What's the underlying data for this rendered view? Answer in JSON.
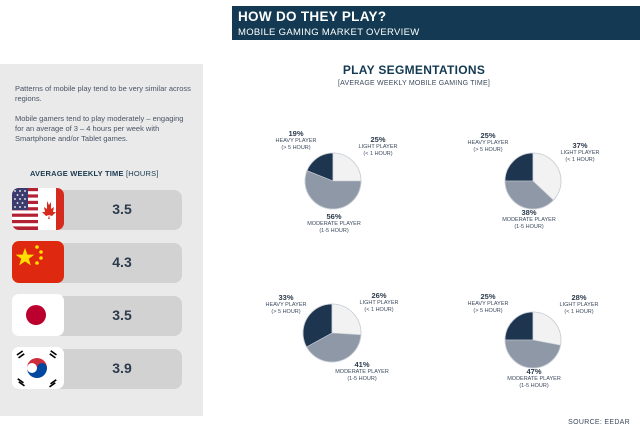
{
  "header": {
    "title": "HOW DO THEY PLAY?",
    "subtitle": "MOBILE GAMING MARKET OVERVIEW"
  },
  "sidebar": {
    "paragraph1": "Patterns of mobile play tend to be very similar across regions.",
    "paragraph2": "Mobile gamers tend to play moderately – engaging for an average of 3 – 4 hours per week with Smartphone and/or Tablet games.",
    "avg_title_bold": "AVERAGE WEEKLY TIME",
    "avg_title_unit": " [HOURS]",
    "regions": [
      {
        "flag": "usa-canada-flag",
        "value": "3.5"
      },
      {
        "flag": "china-flag",
        "value": "4.3"
      },
      {
        "flag": "japan-flag",
        "value": "3.5"
      },
      {
        "flag": "south-korea-flag",
        "value": "3.9"
      }
    ]
  },
  "chart_data": {
    "type": "pie",
    "title": "PLAY SEGMENTATIONS",
    "subtitle": "[AVERAGE WEEKLY MOBILE GAMING TIME]",
    "labels": {
      "heavy": "HEAVY PLAYER\n(> 5 HOUR)",
      "light": "LIGHT PLAYER\n(< 1 HOUR)",
      "moderate": "MODERATE PLAYER\n(1-5 HOUR)"
    },
    "pies": [
      {
        "region": "usa-canada",
        "heavy": 19,
        "light": 25,
        "moderate": 56
      },
      {
        "region": "china",
        "heavy": 25,
        "light": 37,
        "moderate": 38
      },
      {
        "region": "japan",
        "heavy": 33,
        "light": 26,
        "moderate": 41
      },
      {
        "region": "south-korea",
        "heavy": 25,
        "light": 28,
        "moderate": 47
      }
    ],
    "colors": {
      "heavy": "#1e3550",
      "light": "#f2f2f2",
      "moderate": "#8f98a6"
    }
  },
  "source": "SOURCE: EEDAR"
}
